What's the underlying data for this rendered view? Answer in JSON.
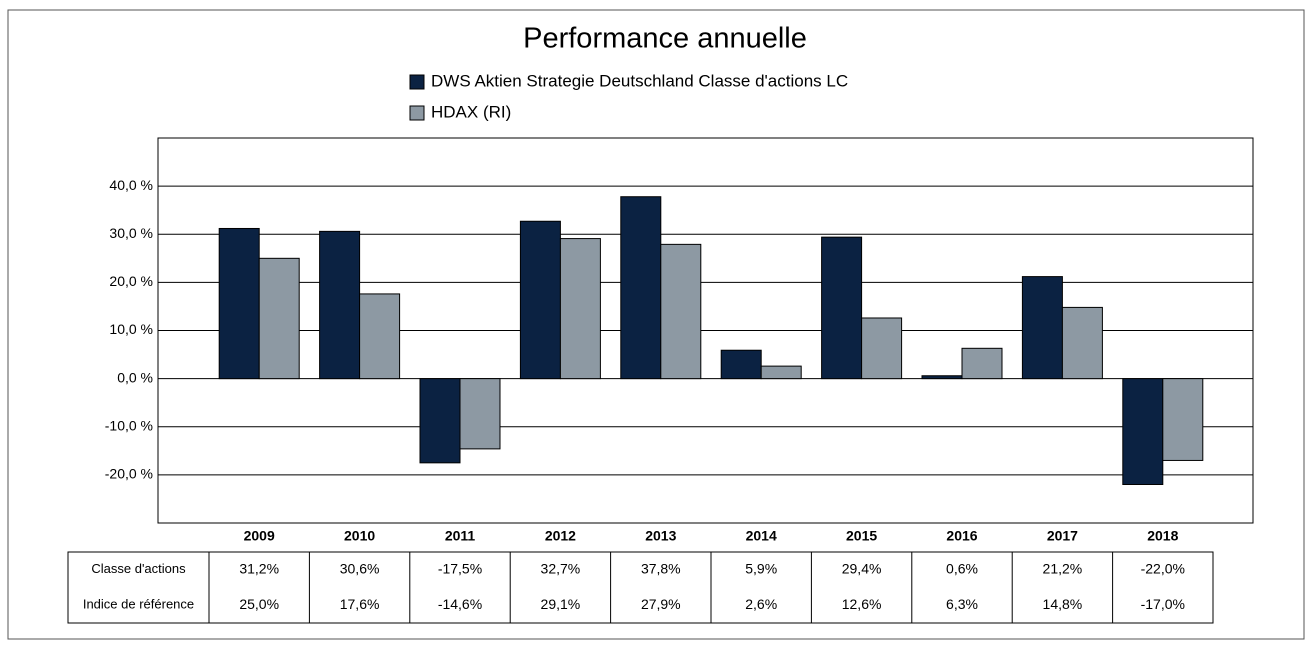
{
  "chart_data": {
    "type": "bar",
    "title": "Performance annuelle",
    "categories": [
      "2009",
      "2010",
      "2011",
      "2012",
      "2013",
      "2014",
      "2015",
      "2016",
      "2017",
      "2018"
    ],
    "series": [
      {
        "name": "DWS Aktien Strategie Deutschland Classe d'actions LC",
        "color": "#0b2242",
        "values": [
          31.2,
          30.6,
          -17.5,
          32.7,
          37.8,
          5.9,
          29.4,
          0.6,
          21.2,
          -22.0
        ],
        "value_labels": [
          "31,2%",
          "30,6%",
          "-17,5%",
          "32,7%",
          "37,8%",
          "5,9%",
          "29,4%",
          "0,6%",
          "21,2%",
          "-22,0%"
        ]
      },
      {
        "name": "HDAX (RI)",
        "color": "#8d99a3",
        "values": [
          25.0,
          17.6,
          -14.6,
          29.1,
          27.9,
          2.6,
          12.6,
          6.3,
          14.8,
          -17.0
        ],
        "value_labels": [
          "25,0%",
          "17,6%",
          "-14,6%",
          "29,1%",
          "27,9%",
          "2,6%",
          "12,6%",
          "6,3%",
          "14,8%",
          "-17,0%"
        ]
      }
    ],
    "table_row_labels": [
      "Classe d'actions",
      "Indice de référence"
    ],
    "ylim": [
      -30,
      50
    ],
    "yticks": [
      {
        "value": -20,
        "label": "-20,0 %"
      },
      {
        "value": -10,
        "label": "-10,0 %"
      },
      {
        "value": 0,
        "label": "0,0 %"
      },
      {
        "value": 10,
        "label": "10,0 %"
      },
      {
        "value": 20,
        "label": "20,0 %"
      },
      {
        "value": 30,
        "label": "30,0 %"
      },
      {
        "value": 40,
        "label": "40,0 %"
      }
    ],
    "grid": true
  }
}
